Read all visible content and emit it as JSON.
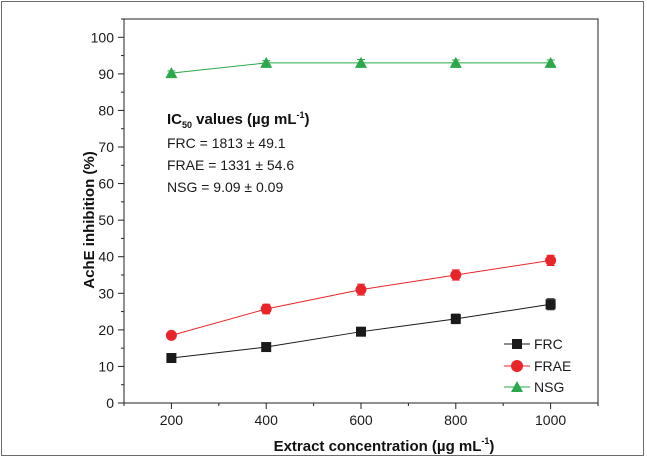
{
  "chart_data": {
    "type": "line",
    "xlabel": {
      "main": "Extract concentration (µg mL",
      "sup": "-1",
      "close": ")"
    },
    "ylabel": "AchE inhibition (%)",
    "x": [
      200,
      400,
      600,
      800,
      1000
    ],
    "xlim": [
      100,
      1100
    ],
    "ylim": [
      0,
      105
    ],
    "xticks": [
      200,
      400,
      600,
      800,
      1000
    ],
    "yticks": [
      0,
      10,
      20,
      30,
      40,
      50,
      60,
      70,
      80,
      90,
      100
    ],
    "grid": false,
    "legend_position": "bottom-right",
    "series": [
      {
        "name": "FRC",
        "marker": "square",
        "color": "#1a1a1a",
        "values": [
          12.3,
          15.3,
          19.5,
          23.0,
          27.0
        ],
        "errors": [
          0.6,
          0.6,
          0.8,
          1.3,
          1.5
        ]
      },
      {
        "name": "FRAE",
        "marker": "circle",
        "color": "#e8262a",
        "values": [
          18.5,
          25.7,
          31.0,
          35.0,
          39.0
        ],
        "errors": [
          0.7,
          1.3,
          1.5,
          1.4,
          1.4
        ]
      },
      {
        "name": "NSG",
        "marker": "triangle",
        "color": "#2aa84a",
        "values": [
          90.2,
          93.0,
          93.0,
          93.0,
          93.0
        ],
        "errors": [
          0.6,
          0.6,
          0.9,
          0.8,
          0.8
        ]
      }
    ],
    "annotation": {
      "title_main": "IC",
      "title_sub": "50",
      "title_rest": " values (µg mL",
      "title_sup": "-1",
      "title_close": ")",
      "lines": [
        "FRC = 1813 ± 49.1",
        "FRAE = 1331 ± 54.6",
        "NSG = 9.09 ± 0.09"
      ]
    }
  }
}
